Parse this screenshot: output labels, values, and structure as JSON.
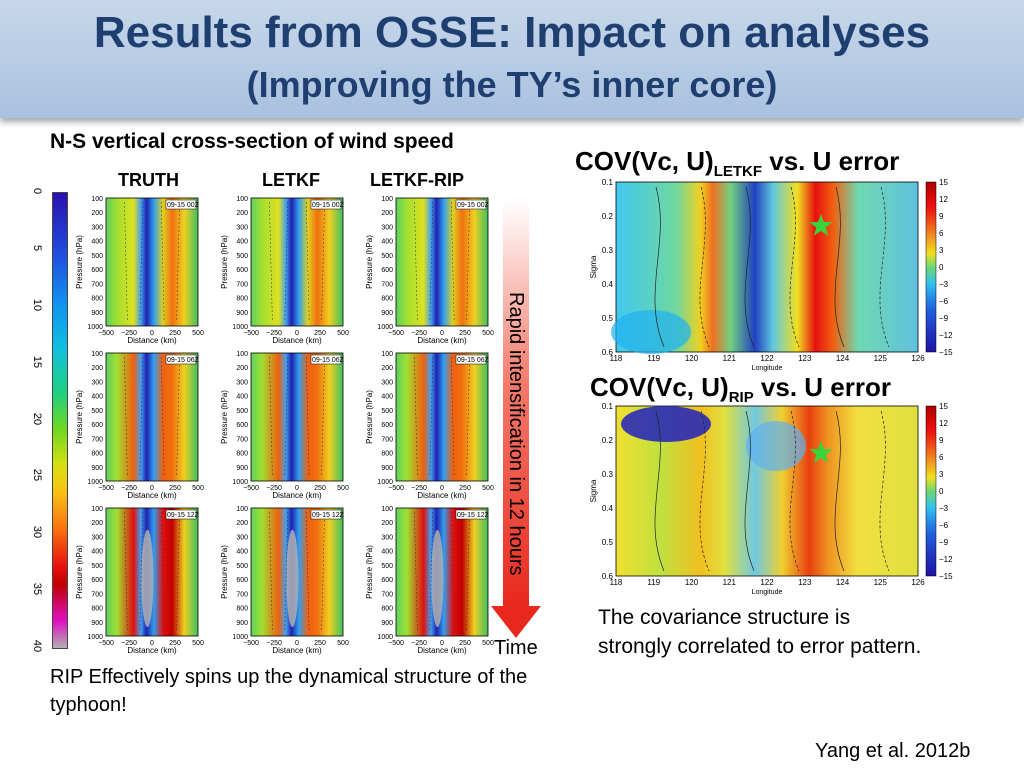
{
  "title": {
    "line1": "Results from OSSE: Impact on analyses",
    "line2": "(Improving the TY’s inner core)"
  },
  "left_heading": "N-S vertical cross-section of wind speed",
  "columns": [
    "TRUTH",
    "LETKF",
    "LETKF-RIP"
  ],
  "panel_times": [
    "09-15 00Z",
    "09-15 06Z",
    "09-15 12Z"
  ],
  "cross_section_axes": {
    "ylabel": "Pressure (hPa)",
    "xlabel": "Distance (km)",
    "yticks": [
      "100",
      "200",
      "300",
      "400",
      "500",
      "600",
      "700",
      "800",
      "900",
      "1000"
    ],
    "xticks": [
      "−500",
      "−250",
      "0",
      "250",
      "500"
    ]
  },
  "colorbar_ticks": [
    "0",
    "5",
    "10",
    "15",
    "20",
    "25",
    "30",
    "35",
    "40"
  ],
  "arrow_label": "Rapid intensification in 12 hours",
  "time_label": "Time",
  "left_caption": "RIP Effectively spins up the dynamical structure of the typhoon!",
  "cov_top": {
    "prefix": "COV(Vc, U)",
    "sub": "LETKF",
    "suffix": " vs. U error"
  },
  "cov_bottom": {
    "prefix": "COV(Vc, U)",
    "sub": "RIP",
    "suffix": " vs. U error"
  },
  "cov_axes": {
    "ylabel": "Sigma",
    "xlabel": "Longitude",
    "yticks": [
      "0.1",
      "0.2",
      "0.3",
      "0.4",
      "0.5",
      "0.6"
    ],
    "xticks": [
      "118",
      "119",
      "120",
      "121",
      "122",
      "123",
      "124",
      "125",
      "126"
    ],
    "colorbar": [
      "15",
      "12",
      "9",
      "6",
      "3",
      "0",
      "−3",
      "−6",
      "−9",
      "−12",
      "−15"
    ]
  },
  "right_caption": "The covariance structure is strongly correlated to error pattern.",
  "citation": "Yang et al. 2012b",
  "colors": {
    "title": "#1f3f70",
    "arrow": "#e8281c",
    "star": "#3cd23c"
  }
}
